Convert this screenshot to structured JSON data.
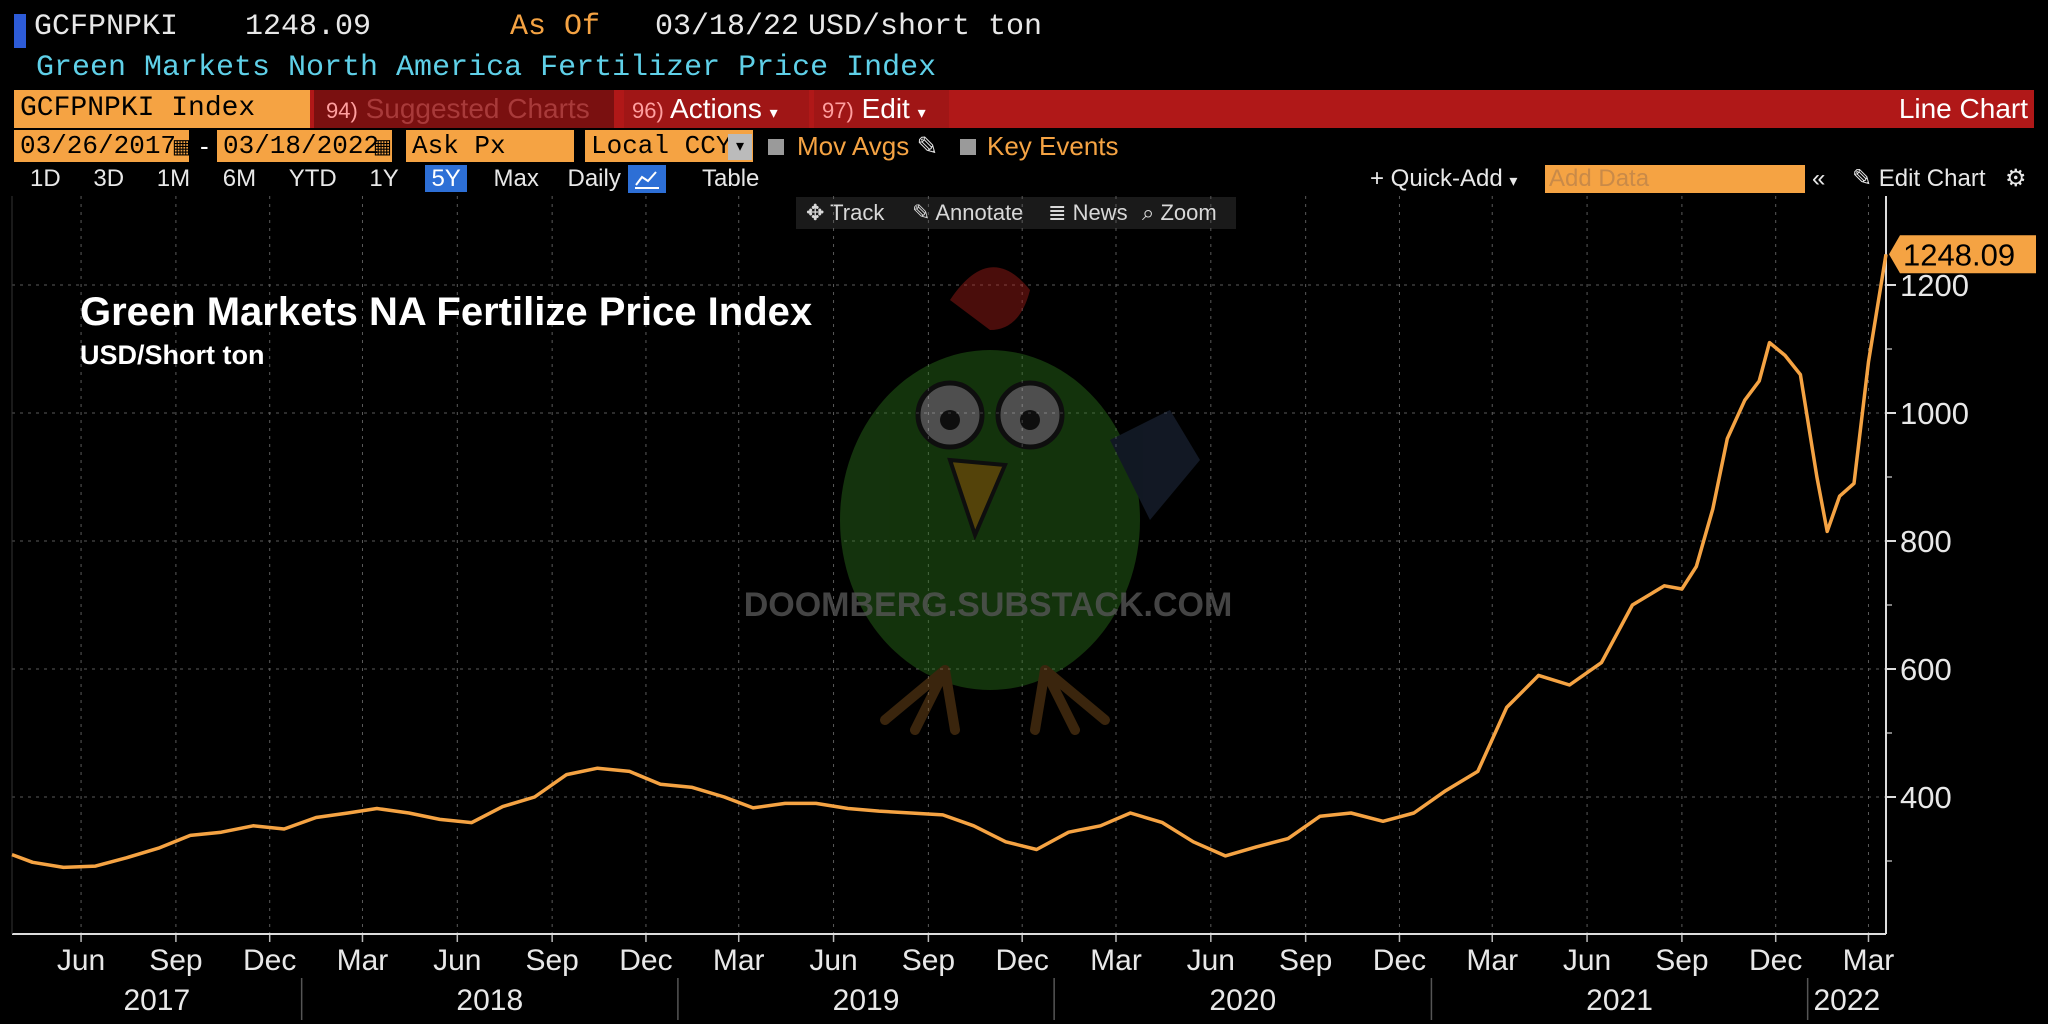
{
  "header": {
    "ticker": "GCFPNPKI",
    "price": "1248.09",
    "as_of_label": "As Of",
    "as_of_date": "03/18/22",
    "unit": "USD/short ton",
    "subtitle": "Green Markets North America Fertilizer Price Index"
  },
  "toolbar": {
    "index_field": "GCFPNPKI Index",
    "suggested_num": "94)",
    "suggested_label": "Suggested Charts",
    "actions_num": "96)",
    "actions_label": "Actions",
    "edit_num": "97)",
    "edit_label": "Edit",
    "view_label": "Line Chart"
  },
  "date_row": {
    "start_date": "03/26/2017",
    "end_date": "03/18/2022",
    "separator": "-",
    "price_field": "Ask Px",
    "currency": "Local CCY",
    "mov_avgs_label": "Mov Avgs",
    "key_events_label": "Key Events"
  },
  "period_row": {
    "periods": [
      "1D",
      "3D",
      "1M",
      "6M",
      "YTD",
      "1Y",
      "5Y",
      "Max"
    ],
    "selected": "5Y",
    "frequency": "Daily",
    "table_label": "Table",
    "quick_add_label": "+ Quick-Add",
    "add_data_placeholder": "Add Data",
    "edit_chart_label": "Edit Chart"
  },
  "tools": [
    "Track",
    "Annotate",
    "News",
    "Zoom"
  ],
  "chart_data": {
    "type": "line",
    "title": "Green Markets NA Fertilize Price Index",
    "subtitle": "USD/Short ton",
    "x_months": [
      "Jun",
      "Sep",
      "Dec",
      "Mar",
      "Jun",
      "Sep",
      "Dec",
      "Mar",
      "Jun",
      "Sep",
      "Dec",
      "Mar",
      "Jun",
      "Sep",
      "Dec",
      "Mar",
      "Jun",
      "Sep",
      "Dec",
      "Mar"
    ],
    "x_years": [
      "2017",
      "2018",
      "2019",
      "2020",
      "2021",
      "2022"
    ],
    "y_ticks": [
      400,
      600,
      800,
      1000,
      1200
    ],
    "ylim": [
      200,
      1300
    ],
    "last_value_label": "1248.09",
    "series_color": "#f5a343",
    "series": [
      {
        "x": [
          "2017-03-26",
          "2017-04-15",
          "2017-05-15",
          "2017-06-15",
          "2017-07-15",
          "2017-08-15",
          "2017-09-15",
          "2017-10-15",
          "2017-11-15",
          "2017-12-15",
          "2018-01-15",
          "2018-02-15",
          "2018-03-15",
          "2018-04-15",
          "2018-05-15",
          "2018-06-15",
          "2018-07-15",
          "2018-08-15",
          "2018-09-15",
          "2018-10-15",
          "2018-11-15",
          "2018-12-15",
          "2019-01-15",
          "2019-02-15",
          "2019-03-15",
          "2019-04-15",
          "2019-05-15",
          "2019-06-15",
          "2019-07-15",
          "2019-08-15",
          "2019-09-15",
          "2019-10-15",
          "2019-11-15",
          "2019-12-15",
          "2020-01-15",
          "2020-02-15",
          "2020-03-15",
          "2020-04-15",
          "2020-05-15",
          "2020-06-15",
          "2020-07-15",
          "2020-08-15",
          "2020-09-15",
          "2020-10-15",
          "2020-11-15",
          "2020-12-15",
          "2021-01-15",
          "2021-02-15",
          "2021-03-15",
          "2021-04-15",
          "2021-05-15",
          "2021-06-15",
          "2021-07-15",
          "2021-08-15",
          "2021-09-01",
          "2021-09-15",
          "2021-10-01",
          "2021-10-15",
          "2021-11-01",
          "2021-11-15",
          "2021-11-25",
          "2021-12-10",
          "2021-12-25",
          "2022-01-10",
          "2022-01-20",
          "2022-02-01",
          "2022-02-15",
          "2022-03-01",
          "2022-03-18"
        ],
        "values": [
          310,
          298,
          290,
          292,
          305,
          320,
          340,
          345,
          355,
          350,
          368,
          375,
          382,
          375,
          365,
          360,
          385,
          400,
          435,
          445,
          440,
          420,
          415,
          400,
          383,
          390,
          390,
          382,
          378,
          375,
          372,
          355,
          330,
          318,
          345,
          355,
          375,
          360,
          330,
          308,
          322,
          335,
          370,
          375,
          362,
          375,
          410,
          440,
          540,
          590,
          575,
          610,
          700,
          730,
          725,
          760,
          850,
          960,
          1020,
          1050,
          1110,
          1090,
          1060,
          900,
          815,
          870,
          890,
          1080,
          1248
        ]
      }
    ],
    "watermark": "DOOMBERG.SUBSTACK.COM"
  }
}
